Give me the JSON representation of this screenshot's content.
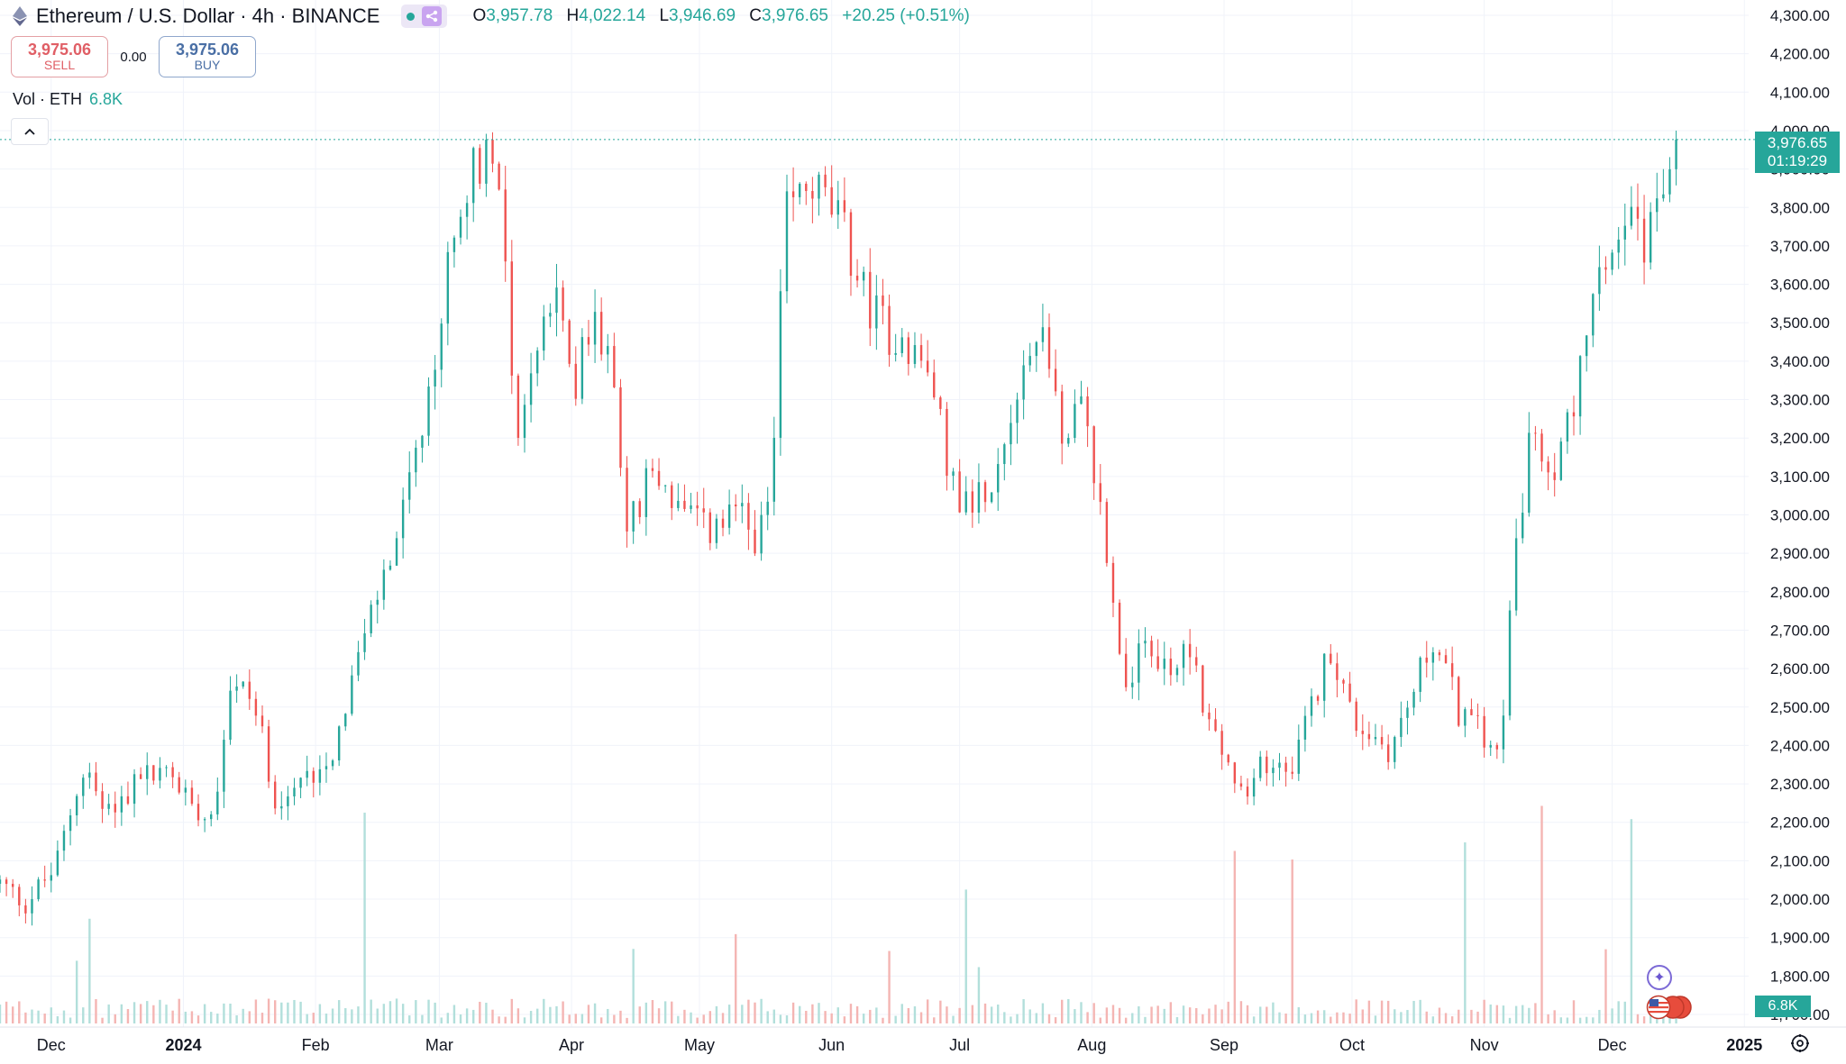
{
  "header": {
    "title": "Ethereum / U.S. Dollar · 4h · BINANCE",
    "ohlc": {
      "o_label": "O",
      "o": "3,957.78",
      "h_label": "H",
      "h": "4,022.14",
      "l_label": "L",
      "l": "3,946.69",
      "c_label": "C",
      "c": "3,976.65",
      "change": "+20.25 (+0.51%)"
    }
  },
  "trade": {
    "sell_price": "3,975.06",
    "sell_label": "SELL",
    "spread": "0.00",
    "buy_price": "3,975.06",
    "buy_label": "BUY"
  },
  "volume_legend": {
    "label": "Vol · ETH",
    "value": "6.8K"
  },
  "price_label": {
    "price": "3,976.65",
    "countdown": "01:19:29"
  },
  "volume_label": "6.8K",
  "icons": [
    "ethereum-icon",
    "share-icon",
    "chevron-up-icon",
    "sparkle-icon",
    "us-flag-icon",
    "settings-icon"
  ],
  "colors": {
    "up": "#26a69a",
    "down": "#ef5350",
    "up_volume": "#b2dfdb",
    "down_volume": "#f4b5b3"
  },
  "chart_data": {
    "type": "candlestick",
    "interval": "4h",
    "y_axis": {
      "side": "right",
      "ticks": [
        "4,300.00",
        "4,200.00",
        "4,100.00",
        "4,000.00",
        "3,900.00",
        "3,800.00",
        "3,700.00",
        "3,600.00",
        "3,500.00",
        "3,400.00",
        "3,300.00",
        "3,200.00",
        "3,100.00",
        "3,000.00",
        "2,900.00",
        "2,800.00",
        "2,700.00",
        "2,600.00",
        "2,500.00",
        "2,400.00",
        "2,300.00",
        "2,200.00",
        "2,100.00",
        "2,000.00",
        "1,900.00",
        "1,800.00",
        "1,700.00"
      ],
      "range": [
        1700,
        4300
      ]
    },
    "x_axis": {
      "labels": [
        "Dec",
        "2024",
        "Feb",
        "Mar",
        "Apr",
        "May",
        "Jun",
        "Jul",
        "Aug",
        "Sep",
        "Oct",
        "Nov",
        "Dec",
        "2025"
      ],
      "bold_labels": [
        "2024",
        "2025"
      ],
      "start": "2023-11-19",
      "end": "2025-01-02"
    },
    "last_price": 3976.65,
    "series": [
      {
        "name": "ETHUSD",
        "x": [
          "2023-11-19",
          "2023-11-25",
          "2023-12-02",
          "2023-12-08",
          "2023-12-15",
          "2023-12-22",
          "2023-12-29",
          "2024-01-03",
          "2024-01-08",
          "2024-01-12",
          "2024-01-17",
          "2024-01-23",
          "2024-01-28",
          "2024-02-05",
          "2024-02-12",
          "2024-02-20",
          "2024-02-28",
          "2024-03-05",
          "2024-03-10",
          "2024-03-14",
          "2024-03-17",
          "2024-03-19",
          "2024-03-24",
          "2024-03-28",
          "2024-04-02",
          "2024-04-07",
          "2024-04-12",
          "2024-04-14",
          "2024-04-20",
          "2024-04-28",
          "2024-05-03",
          "2024-05-10",
          "2024-05-15",
          "2024-05-18",
          "2024-05-21",
          "2024-05-27",
          "2024-06-03",
          "2024-06-09",
          "2024-06-14",
          "2024-06-19",
          "2024-06-24",
          "2024-07-01",
          "2024-07-05",
          "2024-07-10",
          "2024-07-15",
          "2024-07-21",
          "2024-07-25",
          "2024-07-30",
          "2024-08-05",
          "2024-08-08",
          "2024-08-14",
          "2024-08-20",
          "2024-08-24",
          "2024-08-28",
          "2024-09-06",
          "2024-09-10",
          "2024-09-18",
          "2024-09-26",
          "2024-10-01",
          "2024-10-10",
          "2024-10-14",
          "2024-10-20",
          "2024-10-26",
          "2024-10-30",
          "2024-11-05",
          "2024-11-07",
          "2024-11-12",
          "2024-11-17",
          "2024-11-22",
          "2024-11-28",
          "2024-12-05",
          "2024-12-09",
          "2024-12-13",
          "2024-12-16",
          "2024-12-17"
        ],
        "values": [
          2040,
          1990,
          2080,
          2330,
          2230,
          2320,
          2330,
          2250,
          2230,
          2560,
          2530,
          2250,
          2290,
          2390,
          2670,
          2940,
          3300,
          3810,
          3920,
          3990,
          3590,
          3200,
          3430,
          3560,
          3360,
          3520,
          3250,
          2960,
          3120,
          2990,
          2960,
          2990,
          2940,
          3060,
          3770,
          3870,
          3760,
          3560,
          3480,
          3450,
          3350,
          3010,
          3050,
          3140,
          3380,
          3490,
          3190,
          3290,
          2880,
          2580,
          2640,
          2590,
          2670,
          2470,
          2240,
          2350,
          2370,
          2660,
          2470,
          2390,
          2500,
          2680,
          2490,
          2440,
          2420,
          2800,
          3220,
          3060,
          3310,
          3590,
          3850,
          3680,
          3860,
          3950,
          3977
        ]
      }
    ]
  }
}
